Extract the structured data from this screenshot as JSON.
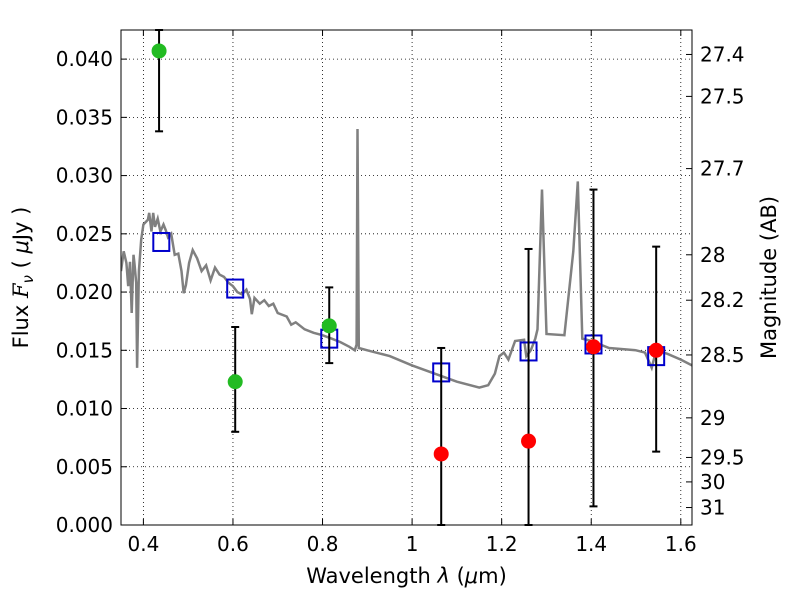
{
  "chart_data": {
    "type": "scatter",
    "xlabel": "Wavelength  λ (μm)",
    "ylabel": "Flux  F_ν  ( μJy )",
    "ylabel_right": "Magnitude (AB)",
    "xlim": [
      0.35,
      1.625
    ],
    "ylim": [
      0.0,
      0.0425
    ],
    "grid": true,
    "x_ticks": [
      0.4,
      0.6,
      0.8,
      1.0,
      1.2,
      1.4,
      1.6
    ],
    "x_tick_labels": [
      "0.4",
      "0.6",
      "0.8",
      "1",
      "1.2",
      "1.4",
      "1.6"
    ],
    "y_ticks": [
      0.0,
      0.005,
      0.01,
      0.015,
      0.02,
      0.025,
      0.03,
      0.035,
      0.04
    ],
    "y_tick_labels": [
      "0.000",
      "0.005",
      "0.010",
      "0.015",
      "0.020",
      "0.025",
      "0.030",
      "0.035",
      "0.040"
    ],
    "right_ticks": [
      {
        "label": "27.4",
        "flux": 0.0404
      },
      {
        "label": "27.5",
        "flux": 0.0368
      },
      {
        "label": "27.7",
        "flux": 0.0306
      },
      {
        "label": "28",
        "flux": 0.0232
      },
      {
        "label": "28.2",
        "flux": 0.0193
      },
      {
        "label": "28.5",
        "flux": 0.0146
      },
      {
        "label": "29",
        "flux": 0.0092
      },
      {
        "label": "29.5",
        "flux": 0.0058
      },
      {
        "label": "30",
        "flux": 0.0037
      },
      {
        "label": "31",
        "flux": 0.0015
      }
    ],
    "series": [
      {
        "kind": "line",
        "color": "#808080",
        "points": [
          [
            0.35,
            0.0218
          ],
          [
            0.356,
            0.0235
          ],
          [
            0.362,
            0.0225
          ],
          [
            0.366,
            0.0205
          ],
          [
            0.37,
            0.0226
          ],
          [
            0.374,
            0.0182
          ],
          [
            0.378,
            0.0232
          ],
          [
            0.38,
            0.0225
          ],
          [
            0.384,
            0.0208
          ],
          [
            0.386,
            0.0135
          ],
          [
            0.39,
            0.0218
          ],
          [
            0.395,
            0.0245
          ],
          [
            0.4,
            0.0258
          ],
          [
            0.41,
            0.0262
          ],
          [
            0.413,
            0.0268
          ],
          [
            0.418,
            0.0252
          ],
          [
            0.422,
            0.0268
          ],
          [
            0.426,
            0.0256
          ],
          [
            0.432,
            0.0263
          ],
          [
            0.438,
            0.0252
          ],
          [
            0.445,
            0.0258
          ],
          [
            0.45,
            0.0253
          ],
          [
            0.455,
            0.0247
          ],
          [
            0.462,
            0.025
          ],
          [
            0.47,
            0.0232
          ],
          [
            0.478,
            0.0233
          ],
          [
            0.485,
            0.0218
          ],
          [
            0.49,
            0.0199
          ],
          [
            0.495,
            0.0206
          ],
          [
            0.502,
            0.0225
          ],
          [
            0.51,
            0.0236
          ],
          [
            0.52,
            0.0229
          ],
          [
            0.53,
            0.0218
          ],
          [
            0.54,
            0.0223
          ],
          [
            0.55,
            0.021
          ],
          [
            0.56,
            0.0221
          ],
          [
            0.57,
            0.0215
          ],
          [
            0.58,
            0.0213
          ],
          [
            0.59,
            0.0208
          ],
          [
            0.6,
            0.0205
          ],
          [
            0.61,
            0.02
          ],
          [
            0.62,
            0.0198
          ],
          [
            0.63,
            0.0202
          ],
          [
            0.638,
            0.0194
          ],
          [
            0.642,
            0.0181
          ],
          [
            0.648,
            0.0195
          ],
          [
            0.66,
            0.019
          ],
          [
            0.67,
            0.0193
          ],
          [
            0.68,
            0.0188
          ],
          [
            0.69,
            0.019
          ],
          [
            0.7,
            0.0182
          ],
          [
            0.72,
            0.0179
          ],
          [
            0.73,
            0.0172
          ],
          [
            0.74,
            0.0174
          ],
          [
            0.76,
            0.0168
          ],
          [
            0.78,
            0.0165
          ],
          [
            0.8,
            0.0163
          ],
          [
            0.82,
            0.016
          ],
          [
            0.84,
            0.0157
          ],
          [
            0.86,
            0.0153
          ],
          [
            0.872,
            0.015
          ],
          [
            0.876,
            0.0155
          ],
          [
            0.878,
            0.034
          ],
          [
            0.881,
            0.0152
          ],
          [
            0.9,
            0.015
          ],
          [
            0.95,
            0.0145
          ],
          [
            1.0,
            0.0137
          ],
          [
            1.05,
            0.013
          ],
          [
            1.1,
            0.0123
          ],
          [
            1.15,
            0.0118
          ],
          [
            1.17,
            0.012
          ],
          [
            1.185,
            0.013
          ],
          [
            1.195,
            0.0145
          ],
          [
            1.205,
            0.0148
          ],
          [
            1.215,
            0.0142
          ],
          [
            1.23,
            0.0158
          ],
          [
            1.25,
            0.0159
          ],
          [
            1.255,
            0.0145
          ],
          [
            1.265,
            0.015
          ],
          [
            1.275,
            0.016
          ],
          [
            1.28,
            0.0168
          ],
          [
            1.29,
            0.0288
          ],
          [
            1.3,
            0.0164
          ],
          [
            1.34,
            0.0163
          ],
          [
            1.36,
            0.0235
          ],
          [
            1.37,
            0.0295
          ],
          [
            1.38,
            0.016
          ],
          [
            1.4,
            0.0158
          ],
          [
            1.44,
            0.0152
          ],
          [
            1.5,
            0.015
          ],
          [
            1.52,
            0.0148
          ],
          [
            1.535,
            0.0135
          ],
          [
            1.545,
            0.015
          ],
          [
            1.57,
            0.0147
          ],
          [
            1.6,
            0.0142
          ],
          [
            1.625,
            0.0137
          ]
        ]
      },
      {
        "kind": "markers",
        "marker": "square",
        "color": "#0000cc",
        "points": [
          [
            0.44,
            0.0243
          ],
          [
            0.605,
            0.0203
          ],
          [
            0.815,
            0.016
          ],
          [
            1.065,
            0.0131
          ],
          [
            1.26,
            0.0149
          ],
          [
            1.405,
            0.0155
          ],
          [
            1.545,
            0.0145
          ]
        ]
      },
      {
        "kind": "markers",
        "marker": "circle",
        "color": "#22bb22",
        "points": [
          {
            "x": 0.435,
            "y": 0.0407,
            "err_lo": 0.0338,
            "err_hi": 0.0425
          },
          {
            "x": 0.605,
            "y": 0.0123,
            "err_lo": 0.008,
            "err_hi": 0.017
          },
          {
            "x": 0.815,
            "y": 0.0171,
            "err_lo": 0.0139,
            "err_hi": 0.0204
          }
        ]
      },
      {
        "kind": "markers",
        "marker": "circle",
        "color": "#ff0000",
        "points": [
          {
            "x": 1.065,
            "y": 0.0061,
            "err_lo": 0.0,
            "err_hi": 0.0152
          },
          {
            "x": 1.26,
            "y": 0.0072,
            "err_lo": 0.0,
            "err_hi": 0.0237
          },
          {
            "x": 1.405,
            "y": 0.0153,
            "err_lo": 0.0016,
            "err_hi": 0.0288
          },
          {
            "x": 1.545,
            "y": 0.015,
            "err_lo": 0.0063,
            "err_hi": 0.0239
          }
        ]
      }
    ]
  }
}
